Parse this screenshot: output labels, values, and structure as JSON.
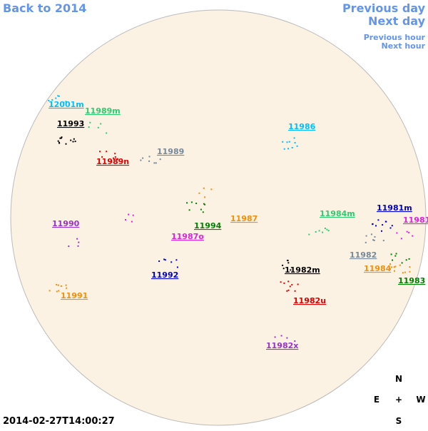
{
  "nav": {
    "back": "Back to 2014",
    "previous_day": "Previous day",
    "next_day": "Next day",
    "previous_hour": "Previous hour",
    "next_hour": "Next hour"
  },
  "regions": [
    {
      "label": "12001m",
      "color": "#00bfff"
    },
    {
      "label": "11989m",
      "color": "#2ecc71"
    },
    {
      "label": "11993",
      "color": "#000000"
    },
    {
      "label": "11989",
      "color": "#778899"
    },
    {
      "label": "11989n",
      "color": "#e00000"
    },
    {
      "label": "11986",
      "color": "#00bfff"
    },
    {
      "label": "11994",
      "color": "#008000"
    },
    {
      "label": "11987",
      "color": "#f0900c"
    },
    {
      "label": "11987o",
      "color": "#e020e0"
    },
    {
      "label": "11990",
      "color": "#9932cc"
    },
    {
      "label": "11992",
      "color": "#0000cd"
    },
    {
      "label": "11991",
      "color": "#f0900c"
    },
    {
      "label": "11984m",
      "color": "#2ecc71"
    },
    {
      "label": "11981m",
      "color": "#0000cd"
    },
    {
      "label": "11981",
      "color": "#e020e0"
    },
    {
      "label": "11982",
      "color": "#778899"
    },
    {
      "label": "11984",
      "color": "#f0900c"
    },
    {
      "label": "11983",
      "color": "#008000"
    },
    {
      "label": "11982m",
      "color": "#000000"
    },
    {
      "label": "11982u",
      "color": "#e00000"
    },
    {
      "label": "11982x",
      "color": "#9932cc"
    }
  ],
  "compass": {
    "north": "N",
    "east": "E",
    "center": "+",
    "west": "W",
    "south": "S"
  },
  "timestamp": "2014-02-27T14:00:27"
}
